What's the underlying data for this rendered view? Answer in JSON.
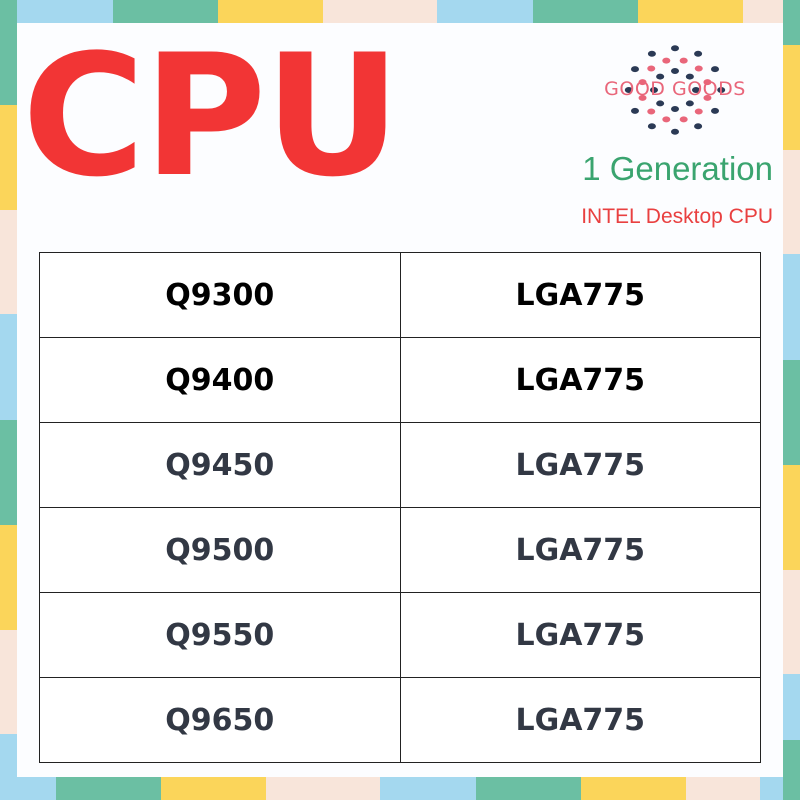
{
  "title": "CPU",
  "brand": "GOOD GOODS",
  "generation": "1 Generation",
  "subtitle": "INTEL Desktop CPU",
  "colors": {
    "title": "#f23535",
    "generation": "#3aa46f",
    "subtitle": "#e94040",
    "brand": "#e9667a",
    "border": [
      "#a4d8ef",
      "#6bbfa3",
      "#fbd55a",
      "#f8e5da"
    ]
  },
  "rows": [
    {
      "model": "Q9300",
      "socket": "LGA775"
    },
    {
      "model": "Q9400",
      "socket": "LGA775"
    },
    {
      "model": "Q9450",
      "socket": "LGA775"
    },
    {
      "model": "Q9500",
      "socket": "LGA775"
    },
    {
      "model": "Q9550",
      "socket": "LGA775"
    },
    {
      "model": "Q9650",
      "socket": "LGA775"
    }
  ]
}
